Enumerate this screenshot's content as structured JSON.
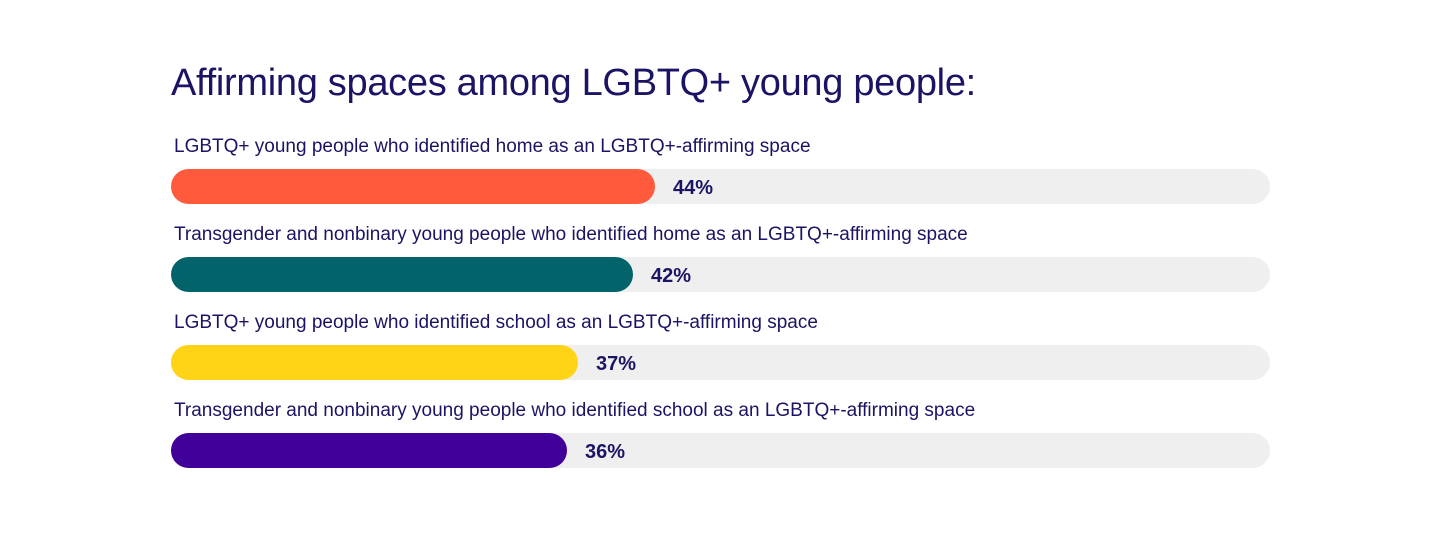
{
  "chart_data": {
    "type": "bar",
    "orientation": "horizontal",
    "title": "Affirming spaces among LGBTQ+ young people:",
    "categories": [
      "LGBTQ+ young people who identified home as an LGBTQ+-affirming space",
      "Transgender and nonbinary young people who identified home as an LGBTQ+-affirming space",
      "LGBTQ+ young people who identified school as an LGBTQ+-affirming space",
      "Transgender and nonbinary young people who identified school as an LGBTQ+-affirming space"
    ],
    "values": [
      44,
      42,
      37,
      36
    ],
    "value_labels": [
      "44%",
      "42%",
      "37%",
      "36%"
    ],
    "colors": [
      "#ff5a3c",
      "#02646a",
      "#ffd316",
      "#42009a"
    ],
    "track_color": "#efefef",
    "xlim": [
      0,
      100
    ],
    "unit": "%",
    "grid": false,
    "legend": "none"
  }
}
